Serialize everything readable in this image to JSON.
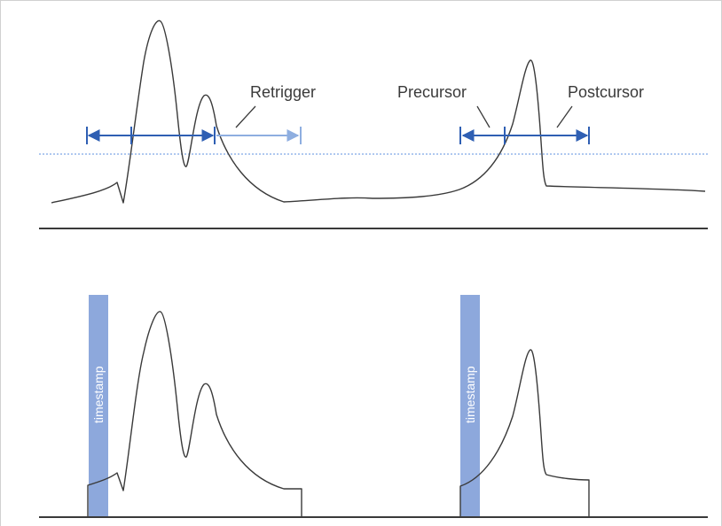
{
  "labels": {
    "retrigger": "Retrigger",
    "precursor": "Precursor",
    "postcursor": "Postcursor"
  },
  "timestamp_labels": [
    "timestamp",
    "timestamp"
  ],
  "colors": {
    "arrow_dark": "#2f5fb3",
    "arrow_light": "#8eaee0",
    "threshold_line": "#7fa6e6",
    "timestamp_bar": "#8da8dc",
    "signal": "#3a3a3a",
    "baseline": "#3a3a3a"
  }
}
